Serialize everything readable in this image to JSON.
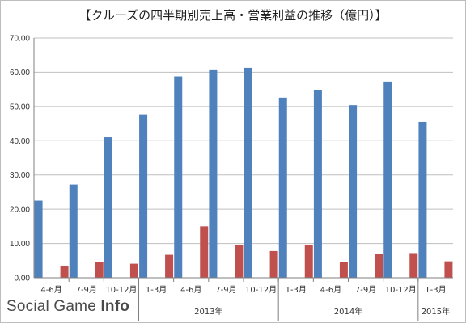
{
  "title": "【クルーズの四半期別売上高・営業利益の推移（億円）】",
  "watermark": {
    "part1": "Social Game",
    "part2": "Info"
  },
  "chart_data": {
    "type": "bar",
    "title": "【クルーズの四半期別売上高・営業利益の推移（億円）】",
    "ylim": [
      0,
      70
    ],
    "yticks": [
      "0.00",
      "10.00",
      "20.00",
      "30.00",
      "40.00",
      "50.00",
      "60.00",
      "70.00"
    ],
    "grid": true,
    "legend": "none",
    "categories": [
      "4-6月",
      "7-9月",
      "10-12月",
      "1-3月",
      "4-6月",
      "7-9月",
      "10-12月",
      "1-3月",
      "4-6月",
      "7-9月",
      "10-12月",
      "1-3月"
    ],
    "groups": [
      {
        "label": "",
        "start": 0,
        "end": 2
      },
      {
        "label": "2013年",
        "start": 3,
        "end": 6
      },
      {
        "label": "2014年",
        "start": 7,
        "end": 10
      },
      {
        "label": "2015年",
        "start": 11,
        "end": 11
      }
    ],
    "series": [
      {
        "color": "#4f81bd",
        "values": [
          22.5,
          27.2,
          41.0,
          47.7,
          58.8,
          60.6,
          61.3,
          52.6,
          54.7,
          50.4,
          57.3,
          45.5
        ]
      },
      {
        "color": "#c0504d",
        "values": [
          3.4,
          4.6,
          4.1,
          6.7,
          15.0,
          9.5,
          7.8,
          9.5,
          4.6,
          6.9,
          7.2,
          4.8
        ]
      }
    ]
  }
}
